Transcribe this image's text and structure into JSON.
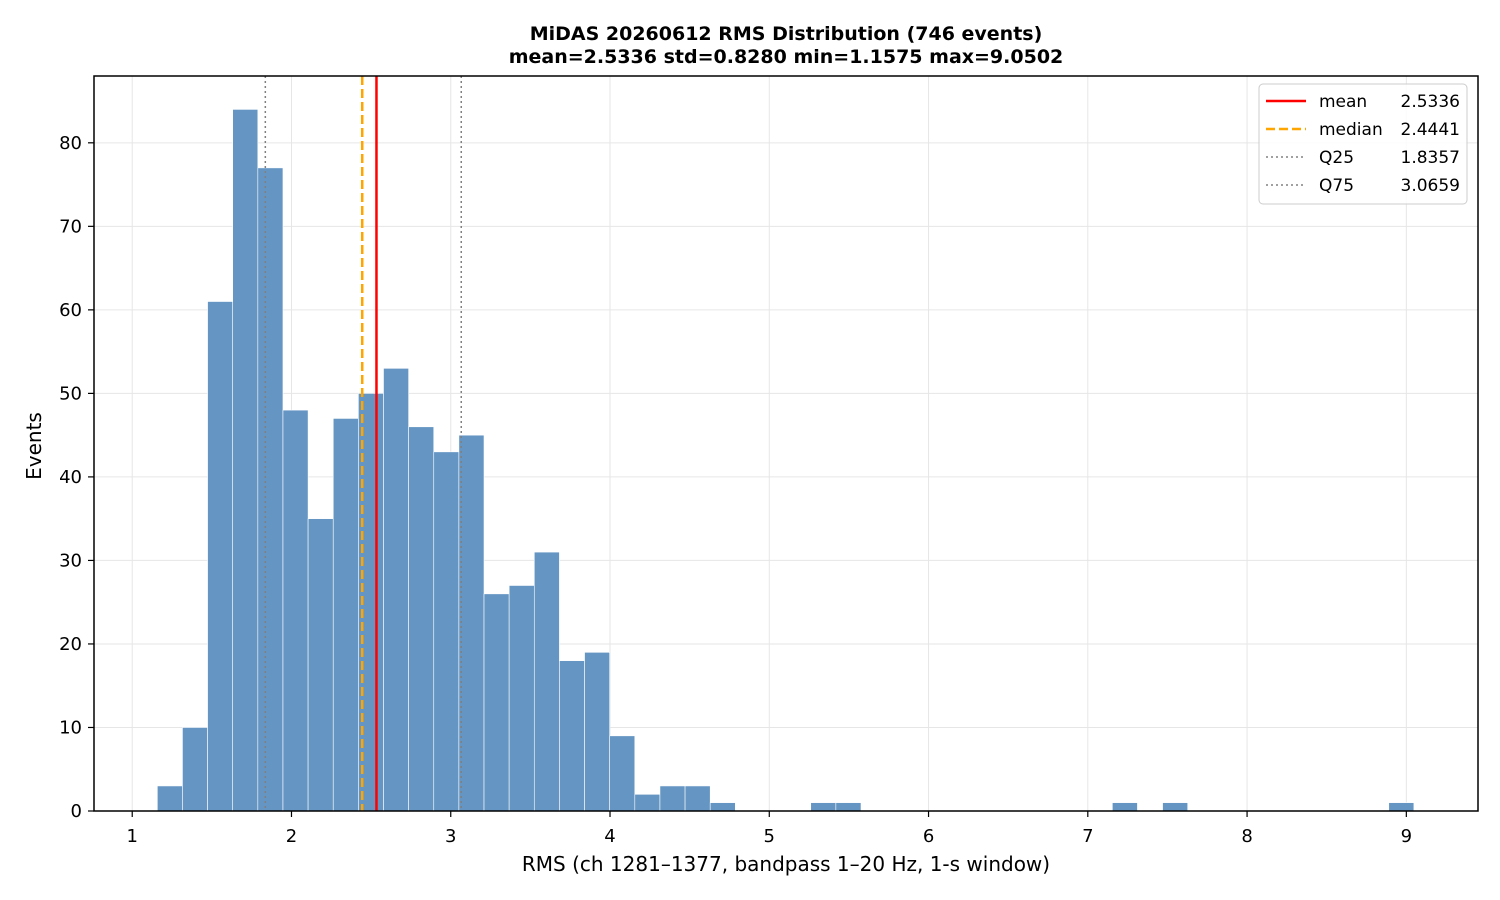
{
  "chart_data": {
    "type": "bar",
    "title": "MiDAS 20260612  RMS Distribution  (746 events)",
    "subtitle": "mean=2.5336  std=0.8280  min=1.1575  max=9.0502",
    "xlabel": "RMS  (ch 1281–1377, bandpass 1–20 Hz, 1-s window)",
    "ylabel": "Events",
    "xlim": [
      0.76,
      9.45
    ],
    "ylim": [
      0,
      88
    ],
    "x_ticks": [
      1,
      2,
      3,
      4,
      5,
      6,
      7,
      8,
      9
    ],
    "y_ticks": [
      0,
      10,
      20,
      30,
      40,
      50,
      60,
      70,
      80
    ],
    "grid": true,
    "legend_position": "top-right",
    "bin_start": 1.1575,
    "bin_width": 0.1578,
    "values": [
      3,
      10,
      61,
      84,
      77,
      48,
      35,
      47,
      50,
      53,
      46,
      43,
      45,
      26,
      27,
      31,
      18,
      19,
      9,
      2,
      3,
      3,
      1,
      0,
      0,
      0,
      1,
      1,
      0,
      0,
      0,
      0,
      0,
      0,
      0,
      0,
      0,
      0,
      1,
      0,
      1,
      0,
      0,
      0,
      0,
      0,
      0,
      0,
      0,
      1
    ],
    "bar_color": "#6495C3",
    "reference_lines": [
      {
        "name": "mean",
        "value": 2.5336,
        "value_label": "2.5336",
        "color": "#FF0000",
        "style": "solid"
      },
      {
        "name": "median",
        "value": 2.4441,
        "value_label": "2.4441",
        "color": "#FFA500",
        "style": "dashed"
      },
      {
        "name": "Q25",
        "value": 1.8357,
        "value_label": "1.8357",
        "color": "#808080",
        "style": "dotted"
      },
      {
        "name": "Q75",
        "value": 3.0659,
        "value_label": "3.0659",
        "color": "#808080",
        "style": "dotted"
      }
    ]
  }
}
